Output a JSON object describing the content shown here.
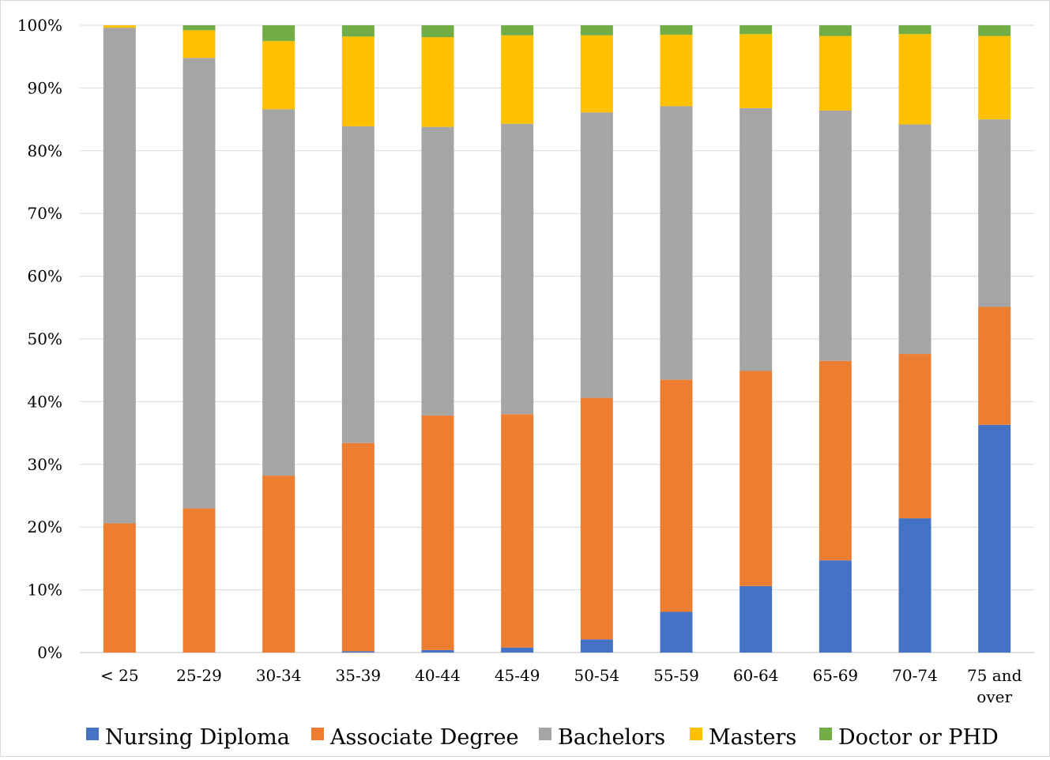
{
  "chart_data": {
    "type": "bar",
    "stacked": "percent",
    "grid": true,
    "legend_position": "bottom",
    "categories": [
      [
        "< 25"
      ],
      [
        "25-29"
      ],
      [
        "30-34"
      ],
      [
        "35-39"
      ],
      [
        "40-44"
      ],
      [
        "45-49"
      ],
      [
        "50-54"
      ],
      [
        "55-59"
      ],
      [
        "60-64"
      ],
      [
        "65-69"
      ],
      [
        "70-74"
      ],
      [
        "75 and",
        "over"
      ]
    ],
    "y_ticks": [
      "0%",
      "10%",
      "20%",
      "30%",
      "40%",
      "50%",
      "60%",
      "70%",
      "80%",
      "90%",
      "100%"
    ],
    "ylim": [
      0,
      100
    ],
    "series": [
      {
        "name": "Nursing Diploma",
        "color": "#4472c4",
        "values": [
          0,
          0,
          0,
          0.2,
          0.4,
          0.8,
          2.1,
          6.5,
          10.6,
          14.7,
          21.4,
          36.3
        ]
      },
      {
        "name": "Associate Degree",
        "color": "#ed7d31",
        "values": [
          20.6,
          23.0,
          28.2,
          33.2,
          37.4,
          37.2,
          38.5,
          37.0,
          34.3,
          31.8,
          26.2,
          18.8
        ]
      },
      {
        "name": "Bachelors",
        "color": "#a5a5a5",
        "values": [
          79.0,
          71.8,
          58.4,
          50.5,
          46.0,
          46.3,
          45.5,
          43.6,
          41.9,
          39.9,
          36.6,
          29.9
        ]
      },
      {
        "name": "Masters",
        "color": "#ffc000",
        "values": [
          0.4,
          4.4,
          10.9,
          14.3,
          14.3,
          14.1,
          12.3,
          11.4,
          11.8,
          11.9,
          14.4,
          13.3
        ]
      },
      {
        "name": "Doctor or PHD",
        "color": "#70ad47",
        "values": [
          0.0,
          0.8,
          2.5,
          1.8,
          1.9,
          1.6,
          1.6,
          1.5,
          1.4,
          1.7,
          1.4,
          1.7
        ]
      }
    ]
  }
}
